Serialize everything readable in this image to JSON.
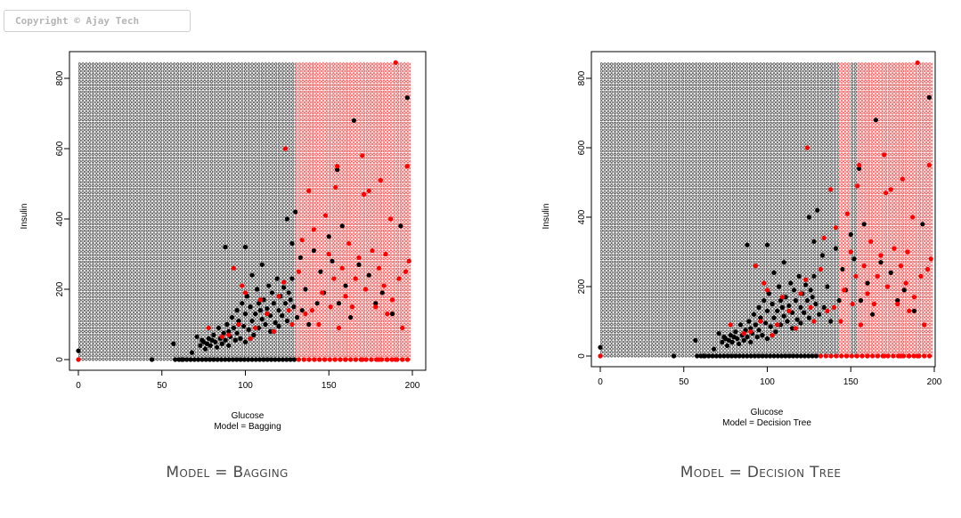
{
  "copyright": "Copyright © Ajay Tech",
  "chart_data": [
    {
      "type": "scatter",
      "xlabel": "Glucose",
      "subtitle": "Model = Bagging",
      "ylabel": "Insulin",
      "xlim": [
        0,
        200
      ],
      "ylim": [
        0,
        850
      ],
      "x_ticks": [
        "0",
        "50",
        "100",
        "150",
        "200"
      ],
      "y_ticks": [
        "0",
        "200",
        "400",
        "600",
        "800"
      ],
      "grid_x_range": [
        0,
        199
      ],
      "grid_y_range": [
        0,
        846
      ],
      "background_regions": [
        {
          "x_from": 0,
          "x_to": 130,
          "color": "#000000"
        },
        {
          "x_from": 130,
          "x_to": 199,
          "color": "#ff0000"
        }
      ],
      "caption": "Model = Bagging"
    },
    {
      "type": "scatter",
      "xlabel": "Glucose",
      "subtitle": "Model = Decision Tree",
      "ylabel": "Insulin",
      "xlim": [
        0,
        200
      ],
      "ylim": [
        0,
        850
      ],
      "x_ticks": [
        "0",
        "50",
        "100",
        "150",
        "200"
      ],
      "y_ticks": [
        "0",
        "200",
        "400",
        "600",
        "800"
      ],
      "grid_x_range": [
        0,
        199
      ],
      "grid_y_range": [
        0,
        846
      ],
      "background_regions": [
        {
          "x_from": 0,
          "x_to": 143,
          "color": "#000000"
        },
        {
          "x_from": 143,
          "x_to": 150,
          "color": "#ff0000"
        },
        {
          "x_from": 150,
          "x_to": 154,
          "color": "#000000"
        },
        {
          "x_from": 154,
          "x_to": 199,
          "color": "#ff0000"
        }
      ],
      "caption": "Model = Decision Tree"
    }
  ],
  "points": {
    "black": [
      [
        0,
        25
      ],
      [
        44,
        0
      ],
      [
        57,
        45
      ],
      [
        62,
        0
      ],
      [
        68,
        20
      ],
      [
        71,
        65
      ],
      [
        73,
        40
      ],
      [
        74,
        55
      ],
      [
        75,
        50
      ],
      [
        76,
        30
      ],
      [
        77,
        45
      ],
      [
        78,
        60
      ],
      [
        79,
        40
      ],
      [
        80,
        55
      ],
      [
        81,
        70
      ],
      [
        82,
        50
      ],
      [
        83,
        35
      ],
      [
        84,
        90
      ],
      [
        85,
        60
      ],
      [
        86,
        45
      ],
      [
        87,
        75
      ],
      [
        88,
        55
      ],
      [
        89,
        100
      ],
      [
        90,
        80
      ],
      [
        90,
        40
      ],
      [
        91,
        65
      ],
      [
        92,
        120
      ],
      [
        93,
        90
      ],
      [
        94,
        55
      ],
      [
        95,
        140
      ],
      [
        95,
        75
      ],
      [
        96,
        110
      ],
      [
        97,
        60
      ],
      [
        98,
        160
      ],
      [
        99,
        95
      ],
      [
        100,
        130
      ],
      [
        100,
        50
      ],
      [
        101,
        180
      ],
      [
        102,
        85
      ],
      [
        103,
        150
      ],
      [
        104,
        110
      ],
      [
        104,
        240
      ],
      [
        105,
        70
      ],
      [
        106,
        130
      ],
      [
        107,
        200
      ],
      [
        108,
        160
      ],
      [
        108,
        90
      ],
      [
        109,
        140
      ],
      [
        110,
        115
      ],
      [
        110,
        270
      ],
      [
        111,
        170
      ],
      [
        112,
        100
      ],
      [
        113,
        145
      ],
      [
        114,
        210
      ],
      [
        115,
        125
      ],
      [
        115,
        80
      ],
      [
        116,
        190
      ],
      [
        117,
        160
      ],
      [
        118,
        105
      ],
      [
        119,
        230
      ],
      [
        120,
        140
      ],
      [
        120,
        95
      ],
      [
        121,
        180
      ],
      [
        122,
        125
      ],
      [
        123,
        205
      ],
      [
        124,
        160
      ],
      [
        125,
        400
      ],
      [
        125,
        110
      ],
      [
        126,
        190
      ],
      [
        127,
        170
      ],
      [
        128,
        230
      ],
      [
        128,
        330
      ],
      [
        129,
        150
      ],
      [
        130,
        420
      ],
      [
        131,
        120
      ],
      [
        133,
        290
      ],
      [
        134,
        140
      ],
      [
        136,
        200
      ],
      [
        138,
        100
      ],
      [
        141,
        310
      ],
      [
        143,
        160
      ],
      [
        145,
        250
      ],
      [
        147,
        190
      ],
      [
        150,
        350
      ],
      [
        152,
        280
      ],
      [
        155,
        540
      ],
      [
        156,
        160
      ],
      [
        158,
        380
      ],
      [
        160,
        210
      ],
      [
        163,
        120
      ],
      [
        165,
        680
      ],
      [
        168,
        270
      ],
      [
        174,
        240
      ],
      [
        178,
        160
      ],
      [
        182,
        190
      ],
      [
        188,
        130
      ],
      [
        193,
        380
      ],
      [
        197,
        745
      ],
      [
        88,
        320
      ],
      [
        100,
        320
      ]
    ],
    "red": [
      [
        0,
        0
      ],
      [
        78,
        90
      ],
      [
        86,
        65
      ],
      [
        90,
        70
      ],
      [
        93,
        260
      ],
      [
        96,
        100
      ],
      [
        98,
        210
      ],
      [
        100,
        190
      ],
      [
        103,
        60
      ],
      [
        106,
        90
      ],
      [
        109,
        170
      ],
      [
        113,
        130
      ],
      [
        117,
        80
      ],
      [
        120,
        180
      ],
      [
        123,
        220
      ],
      [
        124,
        600
      ],
      [
        126,
        140
      ],
      [
        128,
        100
      ],
      [
        132,
        250
      ],
      [
        134,
        340
      ],
      [
        136,
        130
      ],
      [
        138,
        480
      ],
      [
        140,
        140
      ],
      [
        141,
        370
      ],
      [
        144,
        100
      ],
      [
        146,
        190
      ],
      [
        148,
        410
      ],
      [
        150,
        300
      ],
      [
        151,
        150
      ],
      [
        153,
        230
      ],
      [
        154,
        490
      ],
      [
        155,
        550
      ],
      [
        156,
        90
      ],
      [
        158,
        260
      ],
      [
        160,
        180
      ],
      [
        162,
        330
      ],
      [
        164,
        150
      ],
      [
        166,
        230
      ],
      [
        168,
        290
      ],
      [
        170,
        580
      ],
      [
        171,
        470
      ],
      [
        172,
        200
      ],
      [
        174,
        480
      ],
      [
        176,
        310
      ],
      [
        178,
        150
      ],
      [
        180,
        260
      ],
      [
        181,
        510
      ],
      [
        183,
        210
      ],
      [
        184,
        300
      ],
      [
        185,
        130
      ],
      [
        187,
        400
      ],
      [
        188,
        170
      ],
      [
        190,
        845
      ],
      [
        192,
        230
      ],
      [
        194,
        90
      ],
      [
        196,
        250
      ],
      [
        197,
        550
      ],
      [
        198,
        280
      ],
      [
        190,
        0
      ],
      [
        160,
        0
      ],
      [
        170,
        0
      ],
      [
        180,
        0
      ],
      [
        185,
        0
      ]
    ]
  }
}
